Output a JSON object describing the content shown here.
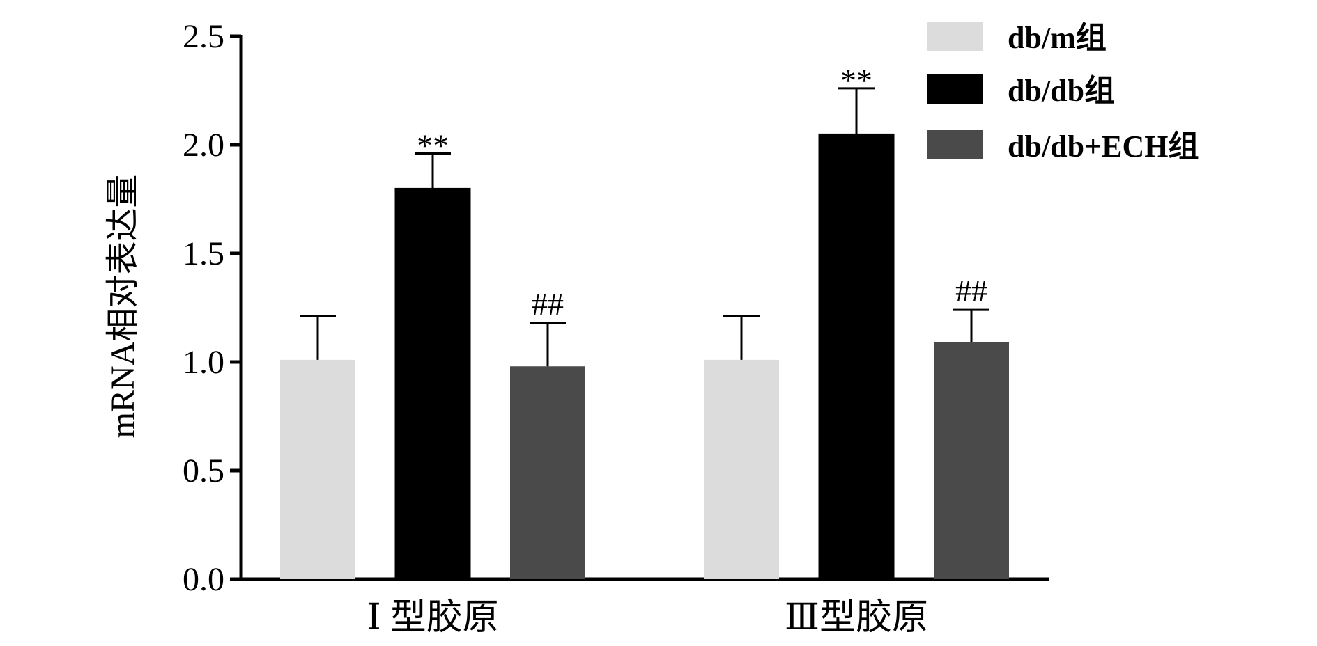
{
  "chart_data": {
    "type": "bar",
    "categories": [
      "Ⅰ 型胶原",
      "Ⅲ型胶原"
    ],
    "ylabel": "mRNA相对表达量",
    "ylim": [
      0,
      2.5
    ],
    "yticks": [
      "0.0",
      "0.5",
      "1.0",
      "1.5",
      "2.0",
      "2.5"
    ],
    "grid": false,
    "legend_position": "top-right",
    "series": [
      {
        "name": "db/m组",
        "color": "#dcdcdc",
        "values": [
          1.01,
          1.01
        ],
        "errors": [
          0.2,
          0.2
        ],
        "annotations": [
          "",
          ""
        ]
      },
      {
        "name": "db/db组",
        "color": "#000000",
        "values": [
          1.8,
          2.05
        ],
        "errors": [
          0.16,
          0.21
        ],
        "annotations": [
          "**",
          "**"
        ]
      },
      {
        "name": "db/db+ECH组",
        "color": "#4a4a4a",
        "values": [
          0.98,
          1.09
        ],
        "errors": [
          0.2,
          0.15
        ],
        "annotations": [
          "##",
          "##"
        ]
      }
    ]
  }
}
